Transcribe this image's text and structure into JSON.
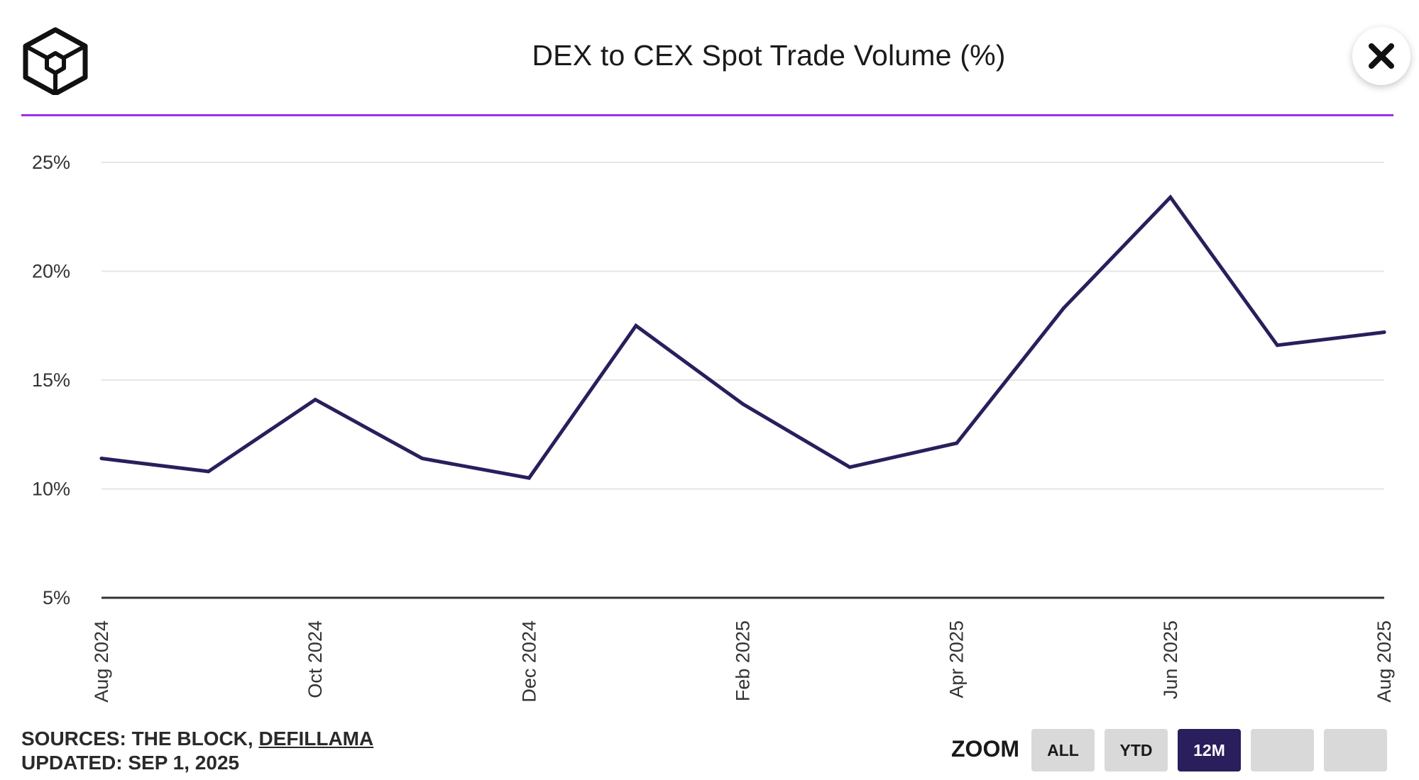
{
  "header": {
    "title": "DEX to CEX Spot Trade Volume (%)",
    "close_icon": "close-icon",
    "logo_icon": "cube-logo-icon"
  },
  "footer": {
    "sources_prefix": "SOURCES: THE BLOCK, ",
    "sources_link": "DEFILLAMA",
    "updated": "UPDATED: SEP 1, 2025",
    "zoom_label": "ZOOM",
    "zoom_buttons": [
      {
        "label": "ALL",
        "active": false
      },
      {
        "label": "YTD",
        "active": false
      },
      {
        "label": "12M",
        "active": true
      },
      {
        "label": "",
        "active": false
      },
      {
        "label": "",
        "active": false
      }
    ]
  },
  "colors": {
    "accent": "#9b30e6",
    "line": "#2a1e5c",
    "active_button": "#2a1e5c",
    "inactive_button": "#d9d9d9",
    "grid": "#e6e6e6"
  },
  "chart_data": {
    "type": "line",
    "title": "DEX to CEX Spot Trade Volume (%)",
    "xlabel": "",
    "ylabel": "",
    "x": [
      "Aug 2024",
      "Sep 2024",
      "Oct 2024",
      "Nov 2024",
      "Dec 2024",
      "Jan 2025",
      "Feb 2025",
      "Mar 2025",
      "Apr 2025",
      "May 2025",
      "Jun 2025",
      "Jul 2025",
      "Aug 2025"
    ],
    "x_tick_labels": [
      "Aug 2024",
      "Oct 2024",
      "Dec 2024",
      "Feb 2025",
      "Apr 2025",
      "Jun 2025",
      "Aug 2025"
    ],
    "series": [
      {
        "name": "DEX to CEX Spot Trade Volume (%)",
        "values": [
          11.4,
          10.8,
          14.1,
          11.4,
          10.5,
          17.5,
          13.9,
          11.0,
          12.1,
          18.3,
          23.4,
          16.6,
          17.2
        ]
      }
    ],
    "y_ticks": [
      5,
      10,
      15,
      20,
      25
    ],
    "y_tick_labels": [
      "5%",
      "10%",
      "15%",
      "20%",
      "25%"
    ],
    "ylim": [
      5,
      25
    ],
    "grid": true,
    "legend": "none"
  }
}
